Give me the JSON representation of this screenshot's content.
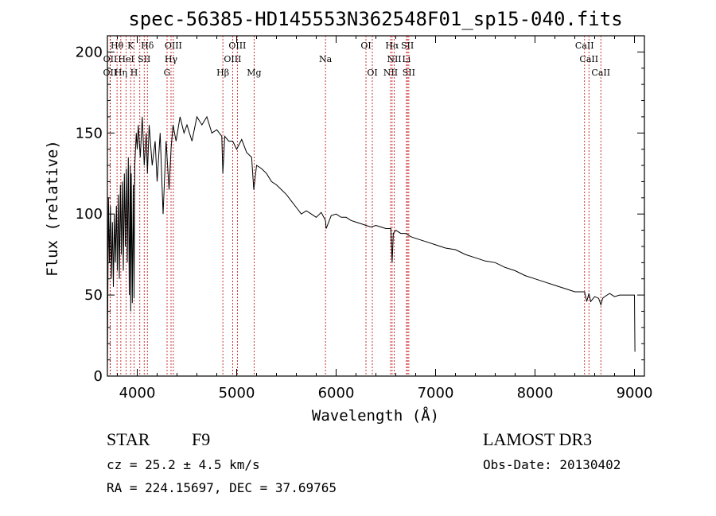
{
  "chart_data": {
    "type": "line",
    "title": "spec-56385-HD145553N362548F01_sp15-040.fits",
    "xlabel": "Wavelength (Å)",
    "ylabel": "Flux (relative)",
    "xlim": [
      3700,
      9100
    ],
    "ylim": [
      0,
      210
    ],
    "xticks": [
      4000,
      5000,
      6000,
      7000,
      8000,
      9000
    ],
    "yticks": [
      0,
      50,
      100,
      150,
      200
    ],
    "series": [
      {
        "name": "spectrum",
        "x": [
          3700,
          3710,
          3720,
          3730,
          3740,
          3750,
          3760,
          3770,
          3780,
          3790,
          3800,
          3810,
          3820,
          3830,
          3840,
          3850,
          3860,
          3870,
          3880,
          3890,
          3900,
          3910,
          3920,
          3930,
          3934,
          3940,
          3950,
          3960,
          3968,
          3975,
          3990,
          4000,
          4010,
          4030,
          4050,
          4070,
          4090,
          4102,
          4120,
          4150,
          4180,
          4200,
          4230,
          4260,
          4290,
          4320,
          4340,
          4360,
          4390,
          4430,
          4470,
          4500,
          4550,
          4600,
          4650,
          4700,
          4750,
          4800,
          4850,
          4861,
          4880,
          4920,
          4960,
          5000,
          5050,
          5100,
          5150,
          5172,
          5200,
          5250,
          5300,
          5350,
          5400,
          5450,
          5500,
          5550,
          5600,
          5650,
          5700,
          5750,
          5800,
          5850,
          5893,
          5900,
          5950,
          6000,
          6050,
          6100,
          6150,
          6200,
          6250,
          6300,
          6350,
          6400,
          6450,
          6500,
          6550,
          6563,
          6575,
          6600,
          6650,
          6700,
          6750,
          6800,
          6900,
          7000,
          7100,
          7200,
          7300,
          7400,
          7500,
          7600,
          7700,
          7800,
          7900,
          8000,
          8100,
          8200,
          8300,
          8400,
          8450,
          8498,
          8520,
          8542,
          8560,
          8600,
          8640,
          8662,
          8680,
          8700,
          8750,
          8800,
          8850,
          8900,
          8950,
          8980,
          9000,
          9005
        ],
        "y": [
          5,
          110,
          70,
          105,
          60,
          95,
          55,
          100,
          70,
          105,
          65,
          112,
          60,
          118,
          75,
          120,
          65,
          125,
          80,
          128,
          70,
          135,
          50,
          130,
          40,
          125,
          45,
          118,
          48,
          130,
          150,
          140,
          155,
          135,
          160,
          130,
          150,
          125,
          155,
          130,
          145,
          120,
          150,
          100,
          145,
          115,
          140,
          155,
          145,
          160,
          150,
          155,
          145,
          160,
          155,
          160,
          150,
          152,
          148,
          125,
          148,
          145,
          145,
          140,
          146,
          138,
          135,
          115,
          130,
          128,
          125,
          120,
          118,
          115,
          112,
          108,
          104,
          100,
          102,
          100,
          98,
          101,
          96,
          91,
          99,
          100,
          98,
          98,
          96,
          95,
          94,
          93,
          92,
          93,
          92,
          91,
          91,
          70,
          88,
          90,
          88,
          88,
          86,
          85,
          83,
          81,
          79,
          78,
          75,
          73,
          71,
          70,
          67,
          65,
          62,
          60,
          58,
          56,
          54,
          52,
          52,
          52,
          46,
          51,
          46,
          49,
          48,
          44,
          48,
          49,
          51,
          49,
          50,
          50,
          50,
          50,
          50,
          15
        ]
      }
    ],
    "line_groups": [
      {
        "x": [
          3727,
          3728,
          3729
        ]
      },
      {
        "x": [
          3797,
          3835,
          3889,
          3934,
          3968,
          4026,
          4070,
          4102
        ]
      },
      {
        "x": [
          4300,
          4340,
          4363
        ]
      },
      {
        "x": [
          4861,
          4959,
          5007,
          5175
        ]
      },
      {
        "x": [
          5893
        ]
      },
      {
        "x": [
          6300,
          6364
        ]
      },
      {
        "x": [
          6548,
          6563,
          6584,
          6707,
          6717,
          6731
        ]
      },
      {
        "x": [
          8498,
          8542,
          8662
        ]
      }
    ],
    "line_labels": [
      {
        "text": "Hθ",
        "x": 3797,
        "row": 0
      },
      {
        "text": "K",
        "x": 3934,
        "row": 0
      },
      {
        "text": "Hδ",
        "x": 4102,
        "row": 0
      },
      {
        "text": "OIII",
        "x": 4363,
        "row": 0
      },
      {
        "text": "OIII",
        "x": 5007,
        "row": 0
      },
      {
        "text": "OI",
        "x": 6300,
        "row": 0
      },
      {
        "text": "Hα",
        "x": 6563,
        "row": 0
      },
      {
        "text": "SII",
        "x": 6717,
        "row": 0
      },
      {
        "text": "CaII",
        "x": 8498,
        "row": 0
      },
      {
        "text": "OII",
        "x": 3728,
        "row": 1
      },
      {
        "text": "HeI",
        "x": 3889,
        "row": 1
      },
      {
        "text": "SII",
        "x": 4070,
        "row": 1
      },
      {
        "text": "Hγ",
        "x": 4340,
        "row": 1
      },
      {
        "text": "OIII",
        "x": 4959,
        "row": 1
      },
      {
        "text": "Na",
        "x": 5893,
        "row": 1
      },
      {
        "text": "NII",
        "x": 6584,
        "row": 1
      },
      {
        "text": "Li",
        "x": 6707,
        "row": 1
      },
      {
        "text": "CaII",
        "x": 8542,
        "row": 1
      },
      {
        "text": "OII",
        "x": 3727,
        "row": 2
      },
      {
        "text": "Hη",
        "x": 3835,
        "row": 2
      },
      {
        "text": "H",
        "x": 3968,
        "row": 2
      },
      {
        "text": "G",
        "x": 4300,
        "row": 2
      },
      {
        "text": "Hβ",
        "x": 4861,
        "row": 2
      },
      {
        "text": "Mg",
        "x": 5175,
        "row": 2
      },
      {
        "text": "OI",
        "x": 6364,
        "row": 2
      },
      {
        "text": "NII",
        "x": 6548,
        "row": 2
      },
      {
        "text": "SII",
        "x": 6731,
        "row": 2
      },
      {
        "text": "CaII",
        "x": 8662,
        "row": 2
      }
    ]
  },
  "info": {
    "class": "STAR",
    "subclass": "F9",
    "cz": "cz = 25.2 ± 4.5 km/s",
    "radec": "RA = 224.15697, DEC =  37.69765",
    "survey": "LAMOST DR3",
    "obs_date": "Obs-Date: 20130402"
  }
}
